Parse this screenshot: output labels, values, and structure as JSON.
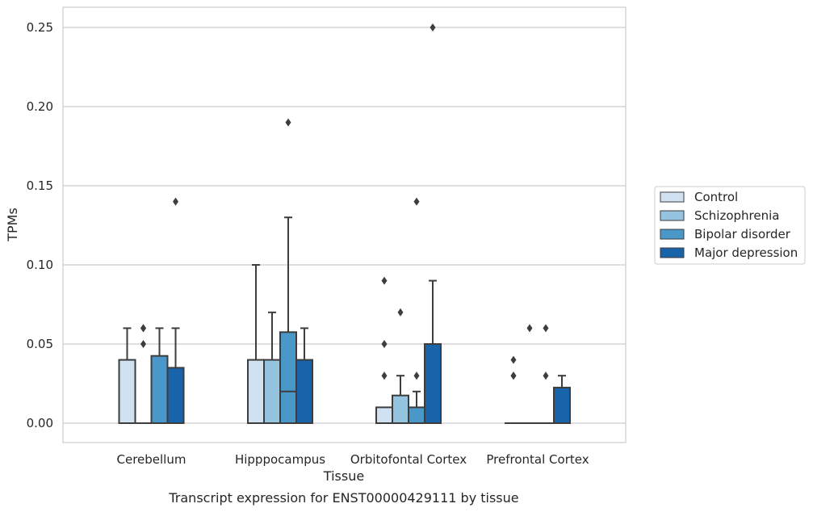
{
  "chart_data": {
    "type": "box",
    "xlabel": "Tissue",
    "ylabel": "TPMs",
    "caption": "Transcript expression for ENST00000429111 by tissue",
    "ylim": [
      -0.012,
      0.263
    ],
    "yticks": [
      0.0,
      0.05,
      0.1,
      0.15,
      0.2,
      0.25
    ],
    "ytick_labels": [
      "0.00",
      "0.05",
      "0.10",
      "0.15",
      "0.20",
      "0.25"
    ],
    "grid": "horizontal",
    "legend_position": "right",
    "categories": [
      "Cerebellum",
      "Hipppocampus",
      "Orbitofontal Cortex",
      "Prefrontal Cortex"
    ],
    "series": [
      {
        "name": "Control",
        "color": "#d0e1f2",
        "boxes": [
          {
            "q1": 0.0,
            "median": 0.0,
            "q3": 0.04,
            "whisker_low": 0.0,
            "whisker_high": 0.06,
            "outliers": []
          },
          {
            "q1": 0.0,
            "median": 0.0,
            "q3": 0.04,
            "whisker_low": 0.0,
            "whisker_high": 0.1,
            "outliers": []
          },
          {
            "q1": 0.0,
            "median": 0.0,
            "q3": 0.01,
            "whisker_low": 0.0,
            "whisker_high": 0.01,
            "outliers": [
              0.03,
              0.05,
              0.09
            ]
          },
          {
            "q1": 0.0,
            "median": 0.0,
            "q3": 0.0,
            "whisker_low": 0.0,
            "whisker_high": 0.0,
            "outliers": [
              0.03,
              0.03,
              0.04
            ]
          }
        ]
      },
      {
        "name": "Schizophrenia",
        "color": "#94c4df",
        "boxes": [
          {
            "q1": 0.0,
            "median": 0.0,
            "q3": 0.0,
            "whisker_low": 0.0,
            "whisker_high": 0.0,
            "outliers": [
              0.05,
              0.06,
              0.06
            ]
          },
          {
            "q1": 0.0,
            "median": 0.0,
            "q3": 0.04,
            "whisker_low": 0.0,
            "whisker_high": 0.07,
            "outliers": []
          },
          {
            "q1": 0.0,
            "median": 0.0,
            "q3": 0.0175,
            "whisker_low": 0.0,
            "whisker_high": 0.03,
            "outliers": [
              0.07
            ]
          },
          {
            "q1": 0.0,
            "median": 0.0,
            "q3": 0.0,
            "whisker_low": 0.0,
            "whisker_high": 0.0,
            "outliers": [
              0.06
            ]
          }
        ]
      },
      {
        "name": "Bipolar disorder",
        "color": "#4a98c9",
        "boxes": [
          {
            "q1": 0.0,
            "median": 0.0,
            "q3": 0.0425,
            "whisker_low": 0.0,
            "whisker_high": 0.06,
            "outliers": []
          },
          {
            "q1": 0.0,
            "median": 0.02,
            "q3": 0.0575,
            "whisker_low": 0.0,
            "whisker_high": 0.13,
            "outliers": [
              0.19
            ]
          },
          {
            "q1": 0.0,
            "median": 0.0,
            "q3": 0.01,
            "whisker_low": 0.0,
            "whisker_high": 0.02,
            "outliers": [
              0.03,
              0.14
            ]
          },
          {
            "q1": 0.0,
            "median": 0.0,
            "q3": 0.0,
            "whisker_low": 0.0,
            "whisker_high": 0.0,
            "outliers": [
              0.03,
              0.06
            ]
          }
        ]
      },
      {
        "name": "Major depression",
        "color": "#1764ab",
        "boxes": [
          {
            "q1": 0.0,
            "median": 0.0,
            "q3": 0.035,
            "whisker_low": 0.0,
            "whisker_high": 0.06,
            "outliers": [
              0.14
            ]
          },
          {
            "q1": 0.0,
            "median": 0.0,
            "q3": 0.04,
            "whisker_low": 0.0,
            "whisker_high": 0.06,
            "outliers": []
          },
          {
            "q1": 0.0,
            "median": 0.0,
            "q3": 0.05,
            "whisker_low": 0.0,
            "whisker_high": 0.09,
            "outliers": [
              0.25
            ]
          },
          {
            "q1": 0.0,
            "median": 0.0,
            "q3": 0.0225,
            "whisker_low": 0.0,
            "whisker_high": 0.03,
            "outliers": []
          }
        ]
      }
    ]
  }
}
